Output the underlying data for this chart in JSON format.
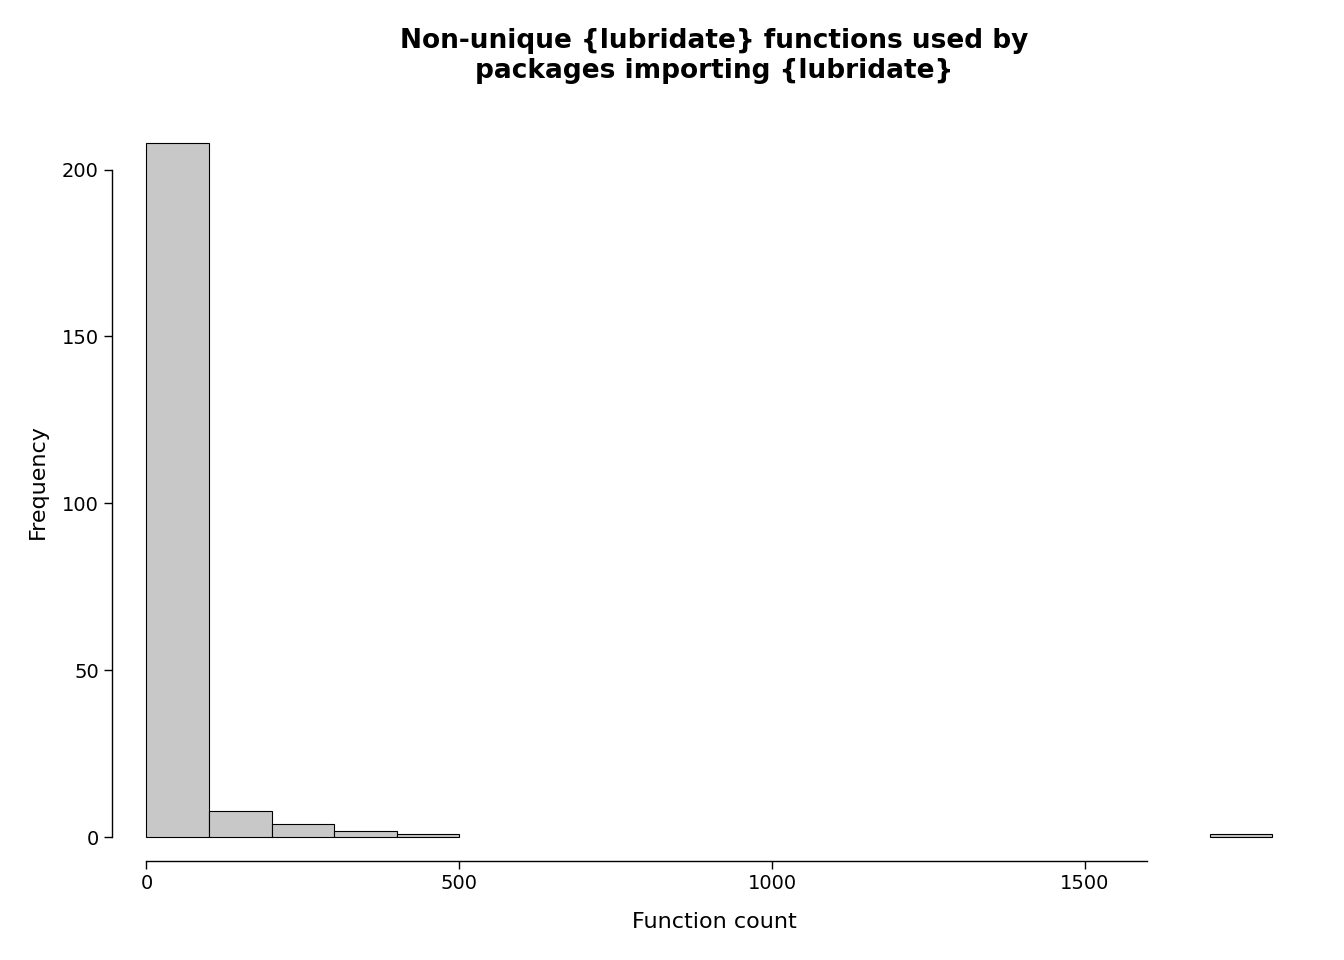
{
  "title": "Non-unique {lubridate} functions used by\npackages importing {lubridate}",
  "xlabel": "Function count",
  "ylabel": "Frequency",
  "bar_color": "#c8c8c8",
  "bar_edgecolor": "#000000",
  "background_color": "#ffffff",
  "xlim_left": -55,
  "xlim_right": 1870,
  "ylim_bottom": -7,
  "ylim_top": 220,
  "xticks": [
    0,
    500,
    1000,
    1500
  ],
  "yticks": [
    0,
    50,
    100,
    150,
    200
  ],
  "title_fontsize": 19,
  "axis_label_fontsize": 16,
  "tick_fontsize": 14,
  "bin_edges": [
    0,
    100,
    200,
    300,
    400,
    500,
    600,
    700,
    800,
    900,
    1000,
    1100,
    1200,
    1300,
    1400,
    1500,
    1600,
    1700,
    1800,
    1900
  ],
  "bin_heights": [
    208,
    8,
    4,
    2,
    1,
    0,
    0,
    0,
    0,
    0,
    0,
    0,
    0,
    0,
    0,
    0,
    0,
    1,
    0
  ]
}
